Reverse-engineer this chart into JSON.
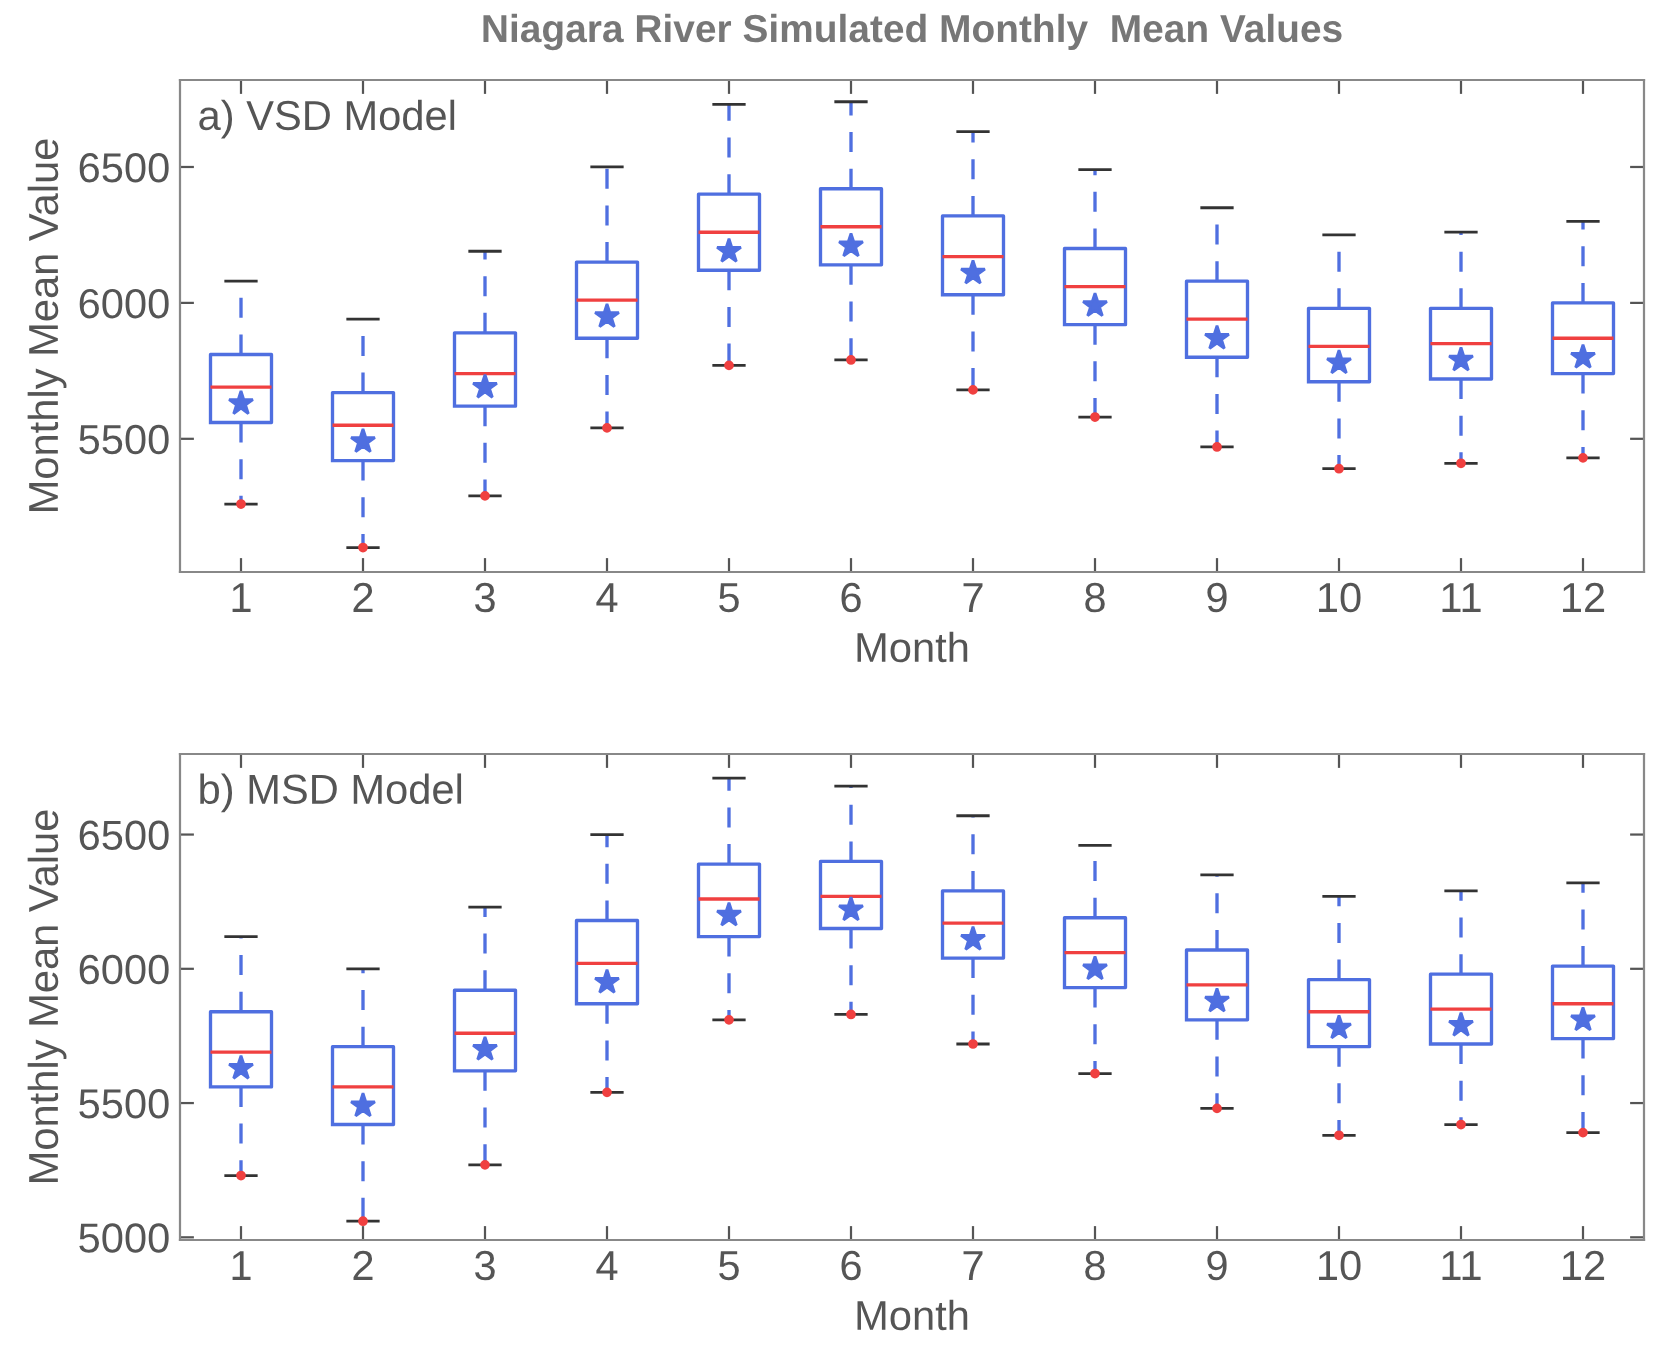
{
  "chart_data": [
    {
      "type": "box",
      "title": "Niagara River Simulated Monthly  Mean Values",
      "xlabel": "Month",
      "ylabel": "Monthly Mean Value",
      "annotations": [
        "a) VSD Model"
      ],
      "categories": [
        "1",
        "2",
        "3",
        "4",
        "5",
        "6",
        "7",
        "8",
        "9",
        "10",
        "11",
        "12"
      ],
      "ylim": [
        5010,
        6820
      ],
      "yticks": [
        5500,
        6000,
        6500
      ],
      "grid": false,
      "color": "#4f6fe0",
      "marker": "star",
      "boxes": [
        {
          "low": 5260,
          "q1": 5560,
          "median": 5690,
          "q3": 5810,
          "high": 6080,
          "mean": 5630,
          "outliers": [
            5260
          ]
        },
        {
          "low": 5100,
          "q1": 5420,
          "median": 5550,
          "q3": 5670,
          "high": 5940,
          "mean": 5490,
          "outliers": [
            5100
          ]
        },
        {
          "low": 5290,
          "q1": 5620,
          "median": 5740,
          "q3": 5890,
          "high": 6190,
          "mean": 5690,
          "outliers": [
            5290
          ]
        },
        {
          "low": 5540,
          "q1": 5870,
          "median": 6010,
          "q3": 6150,
          "high": 6500,
          "mean": 5950,
          "outliers": [
            5540
          ]
        },
        {
          "low": 5770,
          "q1": 6120,
          "median": 6260,
          "q3": 6400,
          "high": 6730,
          "mean": 6190,
          "outliers": [
            5770
          ]
        },
        {
          "low": 5790,
          "q1": 6140,
          "median": 6280,
          "q3": 6420,
          "high": 6740,
          "mean": 6210,
          "outliers": [
            5790
          ]
        },
        {
          "low": 5680,
          "q1": 6030,
          "median": 6170,
          "q3": 6320,
          "high": 6630,
          "mean": 6110,
          "outliers": [
            5680
          ]
        },
        {
          "low": 5580,
          "q1": 5920,
          "median": 6060,
          "q3": 6200,
          "high": 6490,
          "mean": 5990,
          "outliers": [
            5580
          ]
        },
        {
          "low": 5470,
          "q1": 5800,
          "median": 5940,
          "q3": 6080,
          "high": 6350,
          "mean": 5870,
          "outliers": [
            5470
          ]
        },
        {
          "low": 5390,
          "q1": 5710,
          "median": 5840,
          "q3": 5980,
          "high": 6250,
          "mean": 5780,
          "outliers": [
            5390
          ]
        },
        {
          "low": 5410,
          "q1": 5720,
          "median": 5850,
          "q3": 5980,
          "high": 6260,
          "mean": 5790,
          "outliers": [
            5410
          ]
        },
        {
          "low": 5430,
          "q1": 5740,
          "median": 5870,
          "q3": 6000,
          "high": 6300,
          "mean": 5800,
          "outliers": [
            5430
          ]
        }
      ]
    },
    {
      "type": "box",
      "xlabel": "Month",
      "ylabel": "Monthly Mean Value",
      "annotations": [
        "b) MSD Model"
      ],
      "categories": [
        "1",
        "2",
        "3",
        "4",
        "5",
        "6",
        "7",
        "8",
        "9",
        "10",
        "11",
        "12"
      ],
      "ylim": [
        4990,
        6800
      ],
      "yticks": [
        5000,
        5500,
        6000,
        6500
      ],
      "grid": false,
      "color": "#4f6fe0",
      "marker": "star",
      "boxes": [
        {
          "low": 5230,
          "q1": 5560,
          "median": 5690,
          "q3": 5840,
          "high": 6120,
          "mean": 5630,
          "outliers": [
            5230
          ]
        },
        {
          "low": 5060,
          "q1": 5420,
          "median": 5560,
          "q3": 5710,
          "high": 6000,
          "mean": 5490,
          "outliers": [
            5060
          ]
        },
        {
          "low": 5270,
          "q1": 5620,
          "median": 5760,
          "q3": 5920,
          "high": 6230,
          "mean": 5700,
          "outliers": [
            5270
          ]
        },
        {
          "low": 5540,
          "q1": 5870,
          "median": 6020,
          "q3": 6180,
          "high": 6500,
          "mean": 5950,
          "outliers": [
            5540
          ]
        },
        {
          "low": 5810,
          "q1": 6120,
          "median": 6260,
          "q3": 6390,
          "high": 6710,
          "mean": 6200,
          "outliers": [
            5810
          ]
        },
        {
          "low": 5830,
          "q1": 6150,
          "median": 6270,
          "q3": 6400,
          "high": 6680,
          "mean": 6220,
          "outliers": [
            5830
          ]
        },
        {
          "low": 5720,
          "q1": 6040,
          "median": 6170,
          "q3": 6290,
          "high": 6570,
          "mean": 6110,
          "outliers": [
            5720
          ]
        },
        {
          "low": 5610,
          "q1": 5930,
          "median": 6060,
          "q3": 6190,
          "high": 6460,
          "mean": 6000,
          "outliers": [
            5610
          ]
        },
        {
          "low": 5480,
          "q1": 5810,
          "median": 5940,
          "q3": 6070,
          "high": 6350,
          "mean": 5880,
          "outliers": [
            5480
          ]
        },
        {
          "low": 5380,
          "q1": 5710,
          "median": 5840,
          "q3": 5960,
          "high": 6270,
          "mean": 5780,
          "outliers": [
            5380
          ]
        },
        {
          "low": 5420,
          "q1": 5720,
          "median": 5850,
          "q3": 5980,
          "high": 6290,
          "mean": 5790,
          "outliers": [
            5420
          ]
        },
        {
          "low": 5390,
          "q1": 5740,
          "median": 5870,
          "q3": 6010,
          "high": 6320,
          "mean": 5810,
          "outliers": [
            5390
          ]
        }
      ]
    }
  ]
}
